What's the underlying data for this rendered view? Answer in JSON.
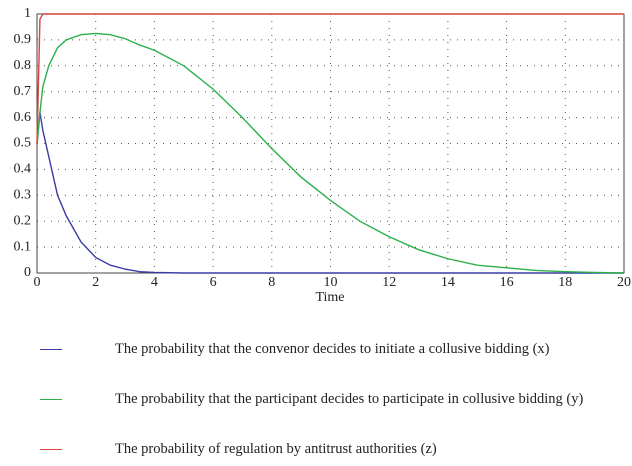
{
  "chart_data": {
    "type": "line",
    "xlabel": "Time",
    "x": [
      0,
      0.1,
      0.2,
      0.4,
      0.7,
      1,
      1.5,
      2,
      2.5,
      3,
      3.5,
      4,
      5,
      6,
      7,
      8,
      9,
      10,
      11,
      12,
      13,
      14,
      15,
      16,
      17,
      18,
      19,
      20
    ],
    "series": [
      {
        "name": "The probability that the convenor decides to initiate a collusive bidding (x)",
        "color": "#3b3ba6",
        "values": [
          0.5,
          0.62,
          0.55,
          0.45,
          0.3,
          0.22,
          0.12,
          0.06,
          0.03,
          0.015,
          0.005,
          0.002,
          0,
          0,
          0,
          0,
          0,
          0,
          0,
          0,
          0,
          0,
          0,
          0,
          0,
          0,
          0,
          0
        ]
      },
      {
        "name": "The probability that the participant decides to participate in collusive bidding (y)",
        "color": "#2bb04a",
        "values": [
          0.5,
          0.62,
          0.72,
          0.8,
          0.87,
          0.9,
          0.92,
          0.925,
          0.92,
          0.905,
          0.88,
          0.86,
          0.8,
          0.71,
          0.6,
          0.48,
          0.37,
          0.28,
          0.2,
          0.14,
          0.09,
          0.055,
          0.03,
          0.02,
          0.01,
          0.005,
          0.002,
          0
        ]
      },
      {
        "name": "The probability of regulation by antitrust authorities (z)",
        "color": "#d8453a",
        "values": [
          0.5,
          0.98,
          1,
          1,
          1,
          1,
          1,
          1,
          1,
          1,
          1,
          1,
          1,
          1,
          1,
          1,
          1,
          1,
          1,
          1,
          1,
          1,
          1,
          1,
          1,
          1,
          1,
          1
        ]
      }
    ],
    "xlim": [
      0,
      20
    ],
    "xticks": [
      0,
      2,
      4,
      6,
      8,
      10,
      12,
      14,
      16,
      18,
      20
    ],
    "ylim": [
      0,
      1
    ],
    "yticks": [
      0,
      0.1,
      0.2,
      0.3,
      0.4,
      0.5,
      0.6,
      0.7,
      0.8,
      0.9,
      1
    ],
    "grid": true
  }
}
